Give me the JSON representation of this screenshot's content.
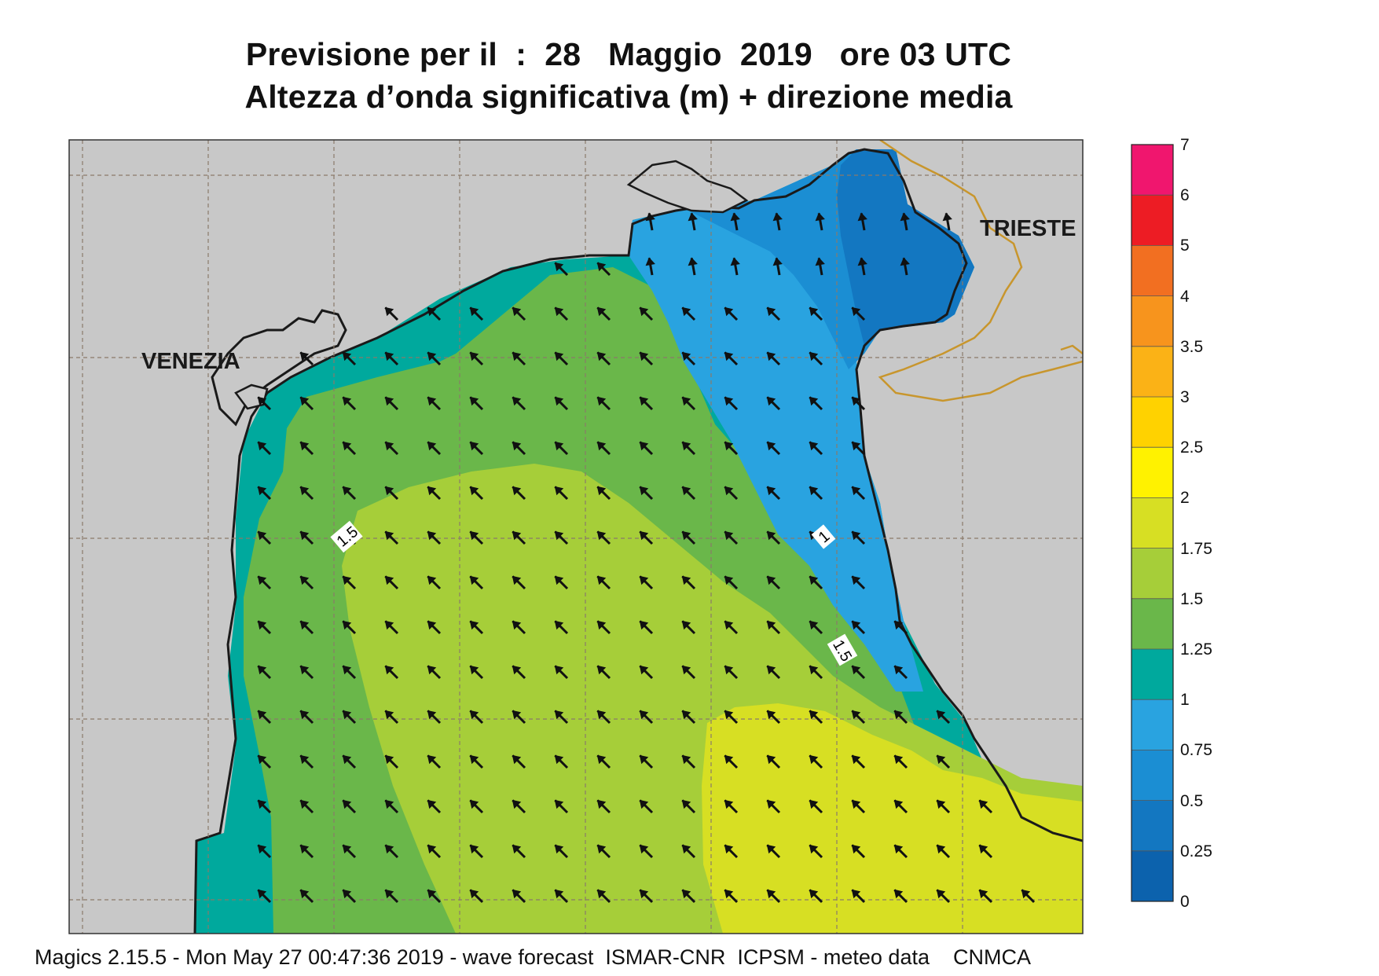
{
  "title": {
    "line1": "Previsione per il  :  28   Maggio  2019   ore 03 UTC",
    "line2": "Altezza d’onda significativa (m) + direzione media"
  },
  "map": {
    "cities": [
      {
        "name": "VENEZIA"
      },
      {
        "name": "TRIESTE"
      }
    ],
    "contour_labels": [
      "1.5",
      "1",
      "1.5"
    ],
    "land_color": "#c8c8c8",
    "coast_color": "#1a1a1a",
    "border_color": "#c8962d",
    "grid_color": "#8a7a6a",
    "arrow_color": "#111111",
    "mean_direction": "north-west"
  },
  "legend": {
    "title": "Altezza d’onda significativa (m)",
    "labels": [
      "7",
      "6",
      "5",
      "4",
      "3.5",
      "3",
      "2.5",
      "2",
      "1.75",
      "1.5",
      "1.25",
      "1",
      "0.75",
      "0.5",
      "0.25",
      "0"
    ],
    "colors": [
      "#f0166e",
      "#ed1c24",
      "#f26f21",
      "#f7941d",
      "#fbb216",
      "#ffd200",
      "#fff200",
      "#d7df23",
      "#a6ce39",
      "#6ab74a",
      "#00a99d",
      "#29a3e0",
      "#1b8ed3",
      "#1377c1",
      "#0c62ad"
    ]
  },
  "footer": "Magics 2.15.5 - Mon May 27 00:47:36 2019 - wave forecast  ISMAR-CNR  ICPSM - meteo data    CNMCA"
}
